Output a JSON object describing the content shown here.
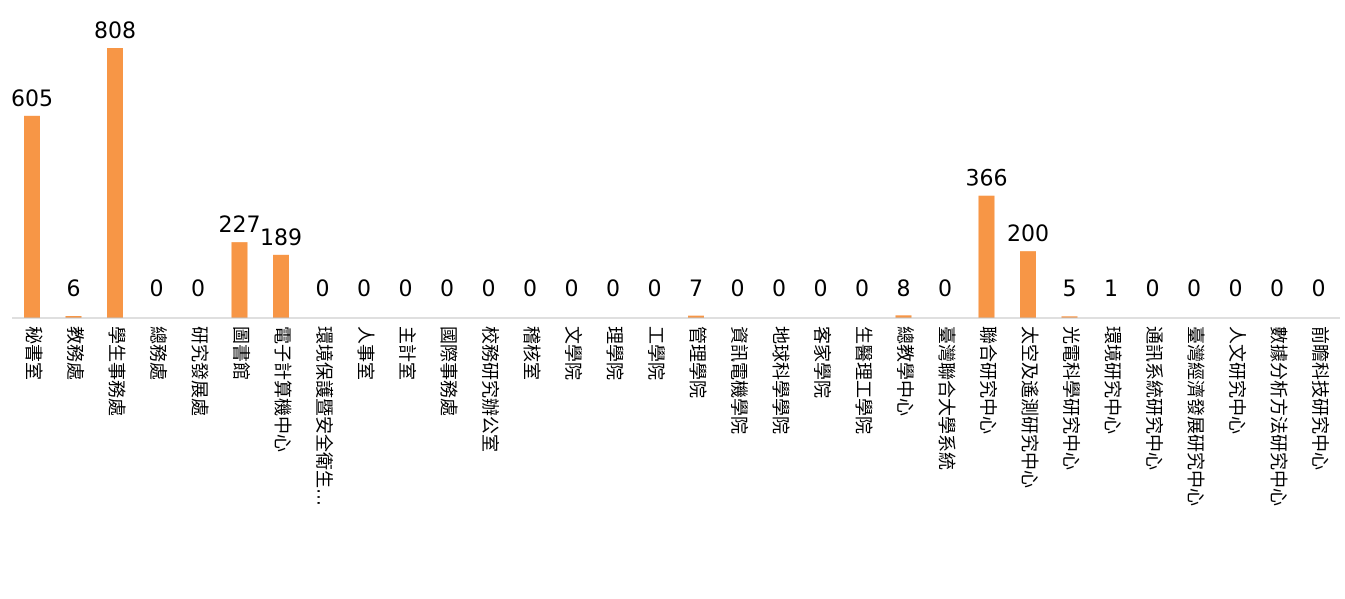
{
  "chart_data": {
    "type": "bar",
    "title": "",
    "xlabel": "",
    "ylabel": "",
    "categories": [
      "秘書室",
      "教務處",
      "學生事務處",
      "總務處",
      "研究發展處",
      "圖書館",
      "電子計算機中心",
      "環境保護暨安全衛生…",
      "人事室",
      "主計室",
      "國際事務處",
      "校務研究辦公室",
      "稽核室",
      "文學院",
      "理學院",
      "工學院",
      "管理學院",
      "資訊電機學院",
      "地球科學學院",
      "客家學院",
      "生醫理工學院",
      "總教學中心",
      "臺灣聯合大學系統",
      "聯合研究中心",
      "太空及遙測研究中心",
      "光電科學研究中心",
      "環境研究中心",
      "通訊系統研究中心",
      "臺灣經濟發展研究中心",
      "人文研究中心",
      "數據分析方法研究中心",
      "前瞻科技研究中心"
    ],
    "values": [
      605,
      6,
      808,
      0,
      0,
      227,
      189,
      0,
      0,
      0,
      0,
      0,
      0,
      0,
      0,
      0,
      7,
      0,
      0,
      0,
      0,
      8,
      0,
      366,
      200,
      5,
      1,
      0,
      0,
      0,
      0,
      0
    ],
    "ylim": [
      0,
      900
    ],
    "grid": false,
    "legend": "none",
    "colors": {
      "bar": "#F79646",
      "axis": "#BFBFBF",
      "text": "#000000"
    }
  }
}
